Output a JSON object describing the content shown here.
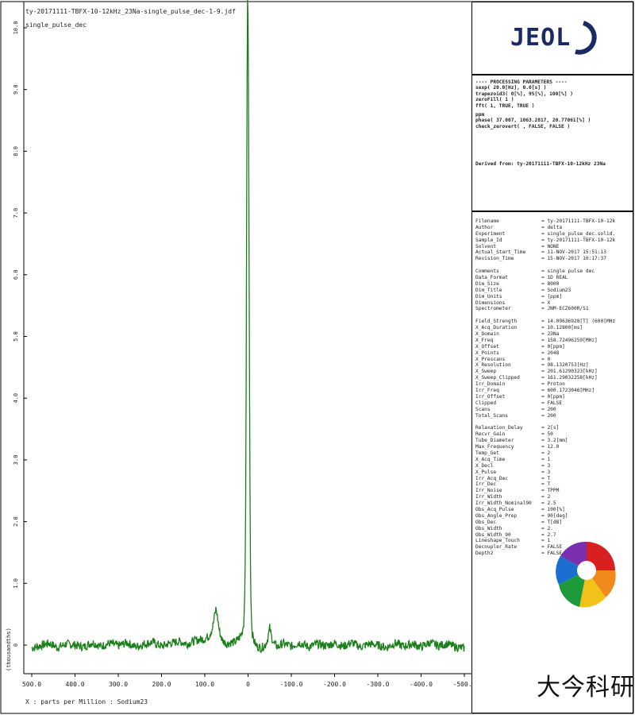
{
  "header": {
    "file_line": "ty-20171111-TBFX-10-12kHz_23Na-single_pulse_dec-1-9.jdf",
    "experiment_line": "single_pulse_dec"
  },
  "logo": {
    "text": "JEOL"
  },
  "processing_panel": {
    "lines": [
      "---- PROCESSING PARAMETERS ----",
      "sexp( 20.0[Hz], 0.0[s] )",
      "trapezoid3( 0[%], 95[%], 100[%] )",
      "zeroFill( 1 )",
      "fft( 1, TRUE, TRUE )",
      "ppm",
      "phase( 37.007, 1063.2817, 20.77061[%] )",
      "check_zerovert( , FALSE, FALSE )"
    ],
    "derived_line": "Derived from: ty-20171111-TBFX-10-12kHz 23Na"
  },
  "info_panel": {
    "groups": [
      [
        {
          "k": "Filename",
          "v": "= ty-20171111-TBFX-10-12k"
        },
        {
          "k": "Author",
          "v": "= delta"
        },
        {
          "k": "Experiment",
          "v": "= single_pulse_dec.solid."
        },
        {
          "k": "Sample_Id",
          "v": "= ty-20171111-TBFX-10-12k"
        },
        {
          "k": "Solvent",
          "v": "= NONE"
        },
        {
          "k": "Actual_Start_Time",
          "v": "= 11-NOV-2017 15:51:13"
        },
        {
          "k": "Revision_Time",
          "v": "= 15-NOV-2017 10:17:37"
        }
      ],
      [
        {
          "k": "Comments",
          "v": "= single pulse dec"
        },
        {
          "k": "Data_Format",
          "v": "= 1D REAL"
        },
        {
          "k": "Dim_Size",
          "v": "= 8000"
        },
        {
          "k": "Dim_Title",
          "v": "= Sodium23"
        },
        {
          "k": "Dim_Units",
          "v": "= [ppm]"
        },
        {
          "k": "Dimensions",
          "v": "= X"
        },
        {
          "k": "Spectrometer",
          "v": "= JNM-ECZ600R/S1"
        }
      ],
      [
        {
          "k": "Field_Strength",
          "v": "= 14.09636928[T] (600[MHz"
        },
        {
          "k": "X_Acq_Duration",
          "v": "= 10.12800[ms]"
        },
        {
          "k": "X_Domain",
          "v": "= 23Na"
        },
        {
          "k": "X_Freq",
          "v": "= 158.72496259[MHz]"
        },
        {
          "k": "X_Offset",
          "v": "= 0[ppm]"
        },
        {
          "k": "X_Points",
          "v": "= 2048"
        },
        {
          "k": "X_Prescans",
          "v": "= 0"
        },
        {
          "k": "X_Resolution",
          "v": "= 98.1320753[Hz]"
        },
        {
          "k": "X_Sweep",
          "v": "= 201.61290323[kHz]"
        },
        {
          "k": "X_Sweep_Clipped",
          "v": "= 161.29032258[kHz]"
        },
        {
          "k": "Irr_Domain",
          "v": "= Proton"
        },
        {
          "k": "Irr_Freq",
          "v": "= 600.1723046[MHz]"
        },
        {
          "k": "Irr_Offset",
          "v": "= 0[ppm]"
        },
        {
          "k": "Clipped",
          "v": "= FALSE"
        },
        {
          "k": "Scans",
          "v": "= 200"
        },
        {
          "k": "Total_Scans",
          "v": "= 200"
        }
      ],
      [
        {
          "k": "Relaxation_Delay",
          "v": "= 2[s]"
        },
        {
          "k": "Recvr_Gain",
          "v": "= 50"
        },
        {
          "k": "Tube_Diameter",
          "v": "= 3.2[mm]"
        },
        {
          "k": "Max_Frequency",
          "v": "= 12.0"
        },
        {
          "k": "Temp_Get",
          "v": "= 2"
        },
        {
          "k": "X_Acq_Time",
          "v": "= 1"
        },
        {
          "k": "X_Decl",
          "v": "= 3"
        },
        {
          "k": "X_Pulse",
          "v": "= 3"
        },
        {
          "k": "Irr_Acq_Dec",
          "v": "= T"
        },
        {
          "k": "Irr_Dec",
          "v": "= T"
        },
        {
          "k": "Irr_Noise",
          "v": "= TPPM"
        },
        {
          "k": "Irr_Width",
          "v": "= 2"
        },
        {
          "k": "Irr_Width_Nominal90",
          "v": "= 2.5"
        },
        {
          "k": "Obs_Acq_Pulse",
          "v": "= 100[%]"
        },
        {
          "k": "Obs_Angle_Prep",
          "v": "= 90[deg]"
        },
        {
          "k": "Obs_Dec",
          "v": "= T[dB]"
        },
        {
          "k": "Obs_Width",
          "v": "= 2."
        },
        {
          "k": "Obs_Width_90",
          "v": "= 2.7"
        },
        {
          "k": "Lineshape_Touch",
          "v": "= 1"
        },
        {
          "k": "Decoupler_Rate",
          "v": "= FALSE"
        },
        {
          "k": "Depth2",
          "v": "= FALSE"
        }
      ]
    ]
  },
  "watermark": {
    "text": "大今科研"
  },
  "colors": {
    "spectrum": "#1a7f1a",
    "frame": "#000000"
  },
  "chart_data": {
    "type": "line",
    "title": "",
    "xlabel": "X : parts per Million : Sodium23",
    "ylabel": "(thousandths)",
    "xlim": [
      500,
      -500
    ],
    "ylim": [
      -0.5,
      10.8
    ],
    "x_ticks": [
      "500.0",
      "400.0",
      "300.0",
      "200.0",
      "100.0",
      "0",
      "-100.0",
      "-200.0",
      "-300.0",
      "-400.0",
      "-500.0"
    ],
    "y_ticks": [
      "0",
      "1.0",
      "2.0",
      "3.0",
      "4.0",
      "5.0",
      "6.0",
      "7.0",
      "8.0",
      "9.0",
      "10.0"
    ],
    "grid": false,
    "series": [
      {
        "x": [
          500,
          480,
          460,
          440,
          420,
          400,
          380,
          360,
          340,
          320,
          300,
          280,
          260,
          240,
          220,
          200,
          180,
          160,
          140,
          120,
          100,
          90,
          82,
          78,
          74,
          70,
          66,
          60,
          50,
          40,
          30,
          20,
          14,
          10,
          8,
          6,
          5,
          4,
          3,
          2,
          1,
          0,
          -1,
          -2,
          -3,
          -4,
          -5,
          -6,
          -8,
          -10,
          -14,
          -20,
          -30,
          -40,
          -46,
          -50,
          -54,
          -60,
          -70,
          -80,
          -100,
          -120,
          -140,
          -160,
          -180,
          -200,
          -220,
          -240,
          -260,
          -280,
          -300,
          -320,
          -340,
          -360,
          -380,
          -400,
          -420,
          -440,
          -460,
          -480,
          -500
        ],
        "y": [
          -0.05,
          -0.01,
          0.03,
          -0.04,
          0.02,
          0.0,
          -0.03,
          0.04,
          -0.02,
          0.03,
          -0.01,
          0.04,
          -0.03,
          0.02,
          0.05,
          -0.02,
          0.03,
          0.06,
          0.02,
          0.08,
          0.1,
          0.15,
          0.28,
          0.45,
          0.6,
          0.42,
          0.22,
          0.08,
          0.02,
          0.04,
          0.05,
          0.12,
          0.2,
          0.35,
          0.7,
          1.6,
          3.0,
          5.0,
          7.6,
          9.6,
          10.6,
          10.2,
          9.0,
          7.2,
          5.0,
          3.2,
          1.9,
          0.9,
          0.4,
          0.18,
          0.06,
          -0.02,
          -0.05,
          0.0,
          0.12,
          0.28,
          0.14,
          0.02,
          -0.03,
          0.03,
          -0.02,
          0.04,
          -0.03,
          0.02,
          -0.01,
          0.03,
          -0.02,
          0.04,
          -0.03,
          0.02,
          0.0,
          -0.04,
          0.03,
          -0.02,
          0.02,
          -0.03,
          0.04,
          -0.01,
          0.02,
          -0.03,
          -0.05
        ]
      }
    ]
  }
}
